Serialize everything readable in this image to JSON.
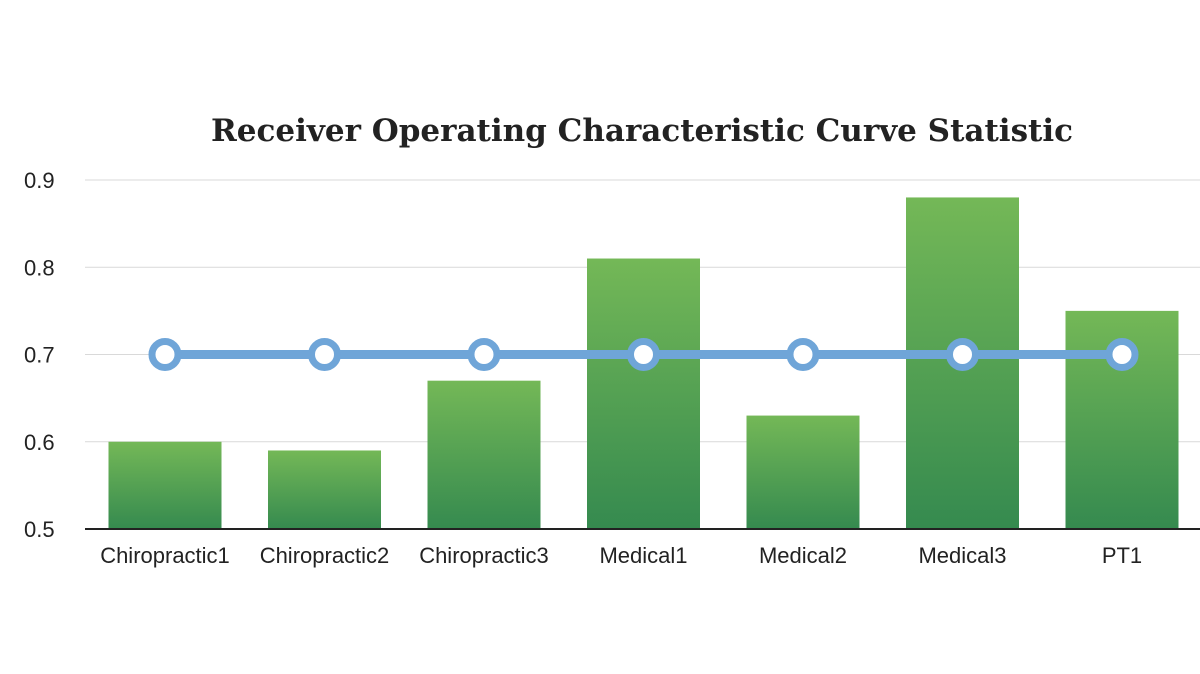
{
  "chart_data": {
    "type": "bar",
    "title": "Receiver Operating Characteristic Curve Statistic",
    "xlabel": "",
    "ylabel": "",
    "categories": [
      "Chiropractic1",
      "Chiropractic2",
      "Chiropractic3",
      "Medical1",
      "Medical2",
      "Medical3",
      "PT1"
    ],
    "series": [
      {
        "type": "bar",
        "values": [
          0.6,
          0.59,
          0.67,
          0.81,
          0.63,
          0.88,
          0.75
        ]
      },
      {
        "type": "line",
        "values": [
          0.7,
          0.7,
          0.7,
          0.7,
          0.7,
          0.7,
          0.7
        ]
      }
    ],
    "ylim": [
      0.5,
      0.9
    ],
    "yticks": [
      "0.5",
      "0.6",
      "0.7",
      "0.8",
      "0.9"
    ],
    "grid": true,
    "legend": "none",
    "colors": {
      "bar_top": "#74b857",
      "bar_bottom": "#358a4f",
      "line": "#6fa5d8",
      "marker_fill": "#ffffff",
      "grid": "#d9d9d9",
      "axis": "#222222"
    }
  }
}
